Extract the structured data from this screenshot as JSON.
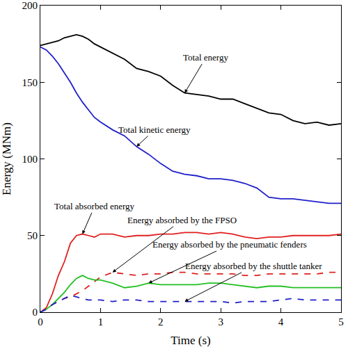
{
  "chart_data": {
    "type": "line",
    "x_label": "Time (s)",
    "y_label": "Energy (MNm)",
    "xlim": [
      0,
      5
    ],
    "xticks": [
      0,
      1,
      2,
      3,
      4,
      5
    ],
    "ylim": [
      0,
      200
    ],
    "yticks": [
      0,
      50,
      100,
      150,
      200
    ],
    "grid": false,
    "x": [
      0,
      0.1,
      0.2,
      0.3,
      0.4,
      0.5,
      0.6,
      0.7,
      0.8,
      0.9,
      1.0,
      1.2,
      1.4,
      1.6,
      1.8,
      2.0,
      2.2,
      2.4,
      2.6,
      2.8,
      3.0,
      3.2,
      3.4,
      3.6,
      3.8,
      4.0,
      4.2,
      4.4,
      4.6,
      4.8,
      5.0
    ],
    "series": [
      {
        "name": "Total energy",
        "color": "#000000",
        "line_style": "solid",
        "values": [
          174,
          175,
          176,
          177,
          179,
          180,
          181,
          180,
          178,
          175,
          173,
          169,
          165,
          159,
          157,
          154,
          148,
          143,
          142,
          141,
          139,
          139,
          136,
          133,
          130,
          129,
          125,
          123,
          124,
          122,
          123
        ]
      },
      {
        "name": "Total kinetic energy",
        "color": "#1f1fcc",
        "line_style": "solid",
        "values": [
          173,
          171,
          167,
          162,
          156,
          150,
          143,
          137,
          132,
          127,
          124,
          119,
          115,
          108,
          103,
          97,
          92,
          90,
          89,
          87,
          87,
          86,
          84,
          81,
          75,
          74,
          74,
          73,
          72,
          71,
          71
        ]
      },
      {
        "name": "Total absorbed energy",
        "color": "#e02020",
        "line_style": "solid",
        "values": [
          0,
          3,
          12,
          24,
          33,
          45,
          50,
          51,
          50,
          49,
          51,
          51,
          49,
          50,
          50,
          51,
          51,
          52,
          52,
          51,
          52,
          51,
          49,
          48,
          49,
          49,
          50,
          50,
          50,
          50,
          51
        ]
      },
      {
        "name": "Energy absorbed by the FPSO",
        "color": "#e02020",
        "line_style": "dash",
        "values": [
          0,
          2,
          5,
          7,
          9,
          10,
          12,
          14,
          17,
          20,
          23,
          26,
          25,
          24,
          25,
          25,
          26,
          26,
          25,
          25,
          25,
          25,
          24,
          24,
          25,
          25,
          25,
          25,
          25,
          26,
          26
        ]
      },
      {
        "name": "Energy absorbed by the pneumatic fenders",
        "color": "#22c022",
        "line_style": "solid",
        "values": [
          0,
          2,
          5,
          9,
          13,
          18,
          22,
          24,
          22,
          21,
          21,
          19,
          16,
          17,
          19,
          18,
          18,
          18,
          18,
          19,
          19,
          18,
          17,
          16,
          17,
          17,
          16,
          16,
          16,
          16,
          16
        ]
      },
      {
        "name": "Energy absorbed by the shuttle tanker",
        "color": "#1f1fcc",
        "line_style": "dash",
        "values": [
          0,
          2,
          5,
          7,
          9,
          11,
          10,
          9,
          8,
          8,
          8,
          7,
          8,
          8,
          7,
          7,
          7,
          7,
          7,
          7,
          7,
          6,
          7,
          7,
          7,
          8,
          9,
          8,
          8,
          8,
          8
        ]
      }
    ]
  }
}
